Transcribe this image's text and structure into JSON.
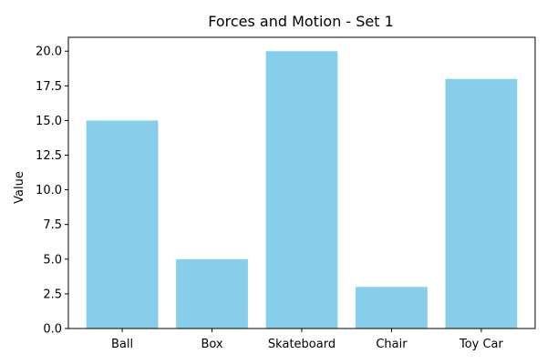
{
  "chart_data": {
    "type": "bar",
    "title": "Forces and Motion - Set 1",
    "xlabel": "",
    "ylabel": "Value",
    "categories": [
      "Ball",
      "Box",
      "Skateboard",
      "Chair",
      "Toy Car"
    ],
    "values": [
      15,
      5,
      20,
      3,
      18
    ],
    "ylim": [
      0,
      21
    ],
    "yticks": [
      "0.0",
      "2.5",
      "5.0",
      "7.5",
      "10.0",
      "12.5",
      "15.0",
      "17.5",
      "20.0"
    ],
    "grid": false,
    "bar_color": "#87ceeb"
  }
}
